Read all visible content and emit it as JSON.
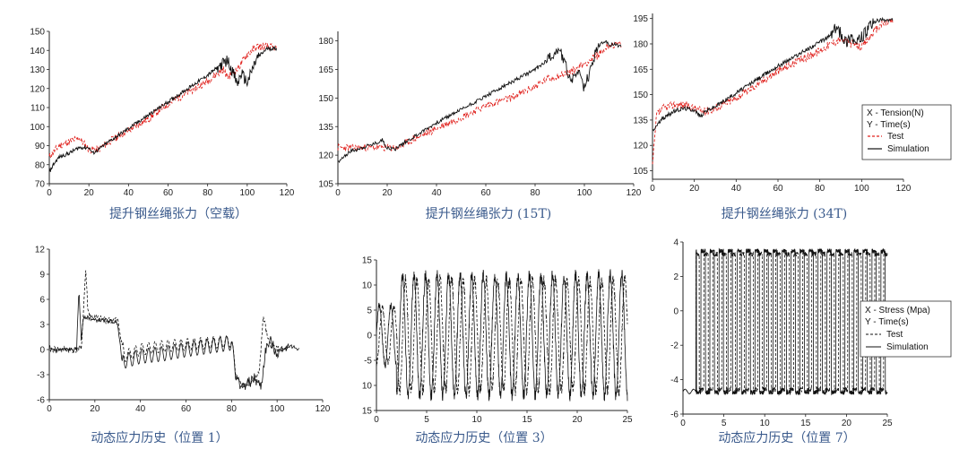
{
  "colors": {
    "test_top": "#e0201c",
    "simulation": "#111111",
    "caption": "#3a5a8c"
  },
  "legend_tension": {
    "x": "X - Tension(N)",
    "y": "Y - Time(s)",
    "test": "Test",
    "simulation": "Simulation"
  },
  "legend_stress": {
    "x": "X - Stress (Mpa)",
    "y": "Y - Time(s)",
    "test": "Test",
    "simulation": "Simulation"
  },
  "chart_data": [
    {
      "type": "line",
      "caption": "提升钢丝绳张力（空载）",
      "xlim": [
        0,
        120
      ],
      "ylim": [
        70,
        150
      ],
      "xticks": [
        "0",
        "20",
        "40",
        "60",
        "80",
        "100",
        "120"
      ],
      "yticks": [
        "70",
        "80",
        "90",
        "100",
        "110",
        "120",
        "130",
        "140",
        "150"
      ],
      "series": [
        {
          "style": "test",
          "x": [
            0,
            5,
            10,
            15,
            20,
            25,
            30,
            40,
            50,
            60,
            70,
            80,
            85,
            88,
            90,
            95,
            100,
            105,
            110,
            115
          ],
          "y": [
            84,
            90,
            92,
            94,
            88,
            88,
            92,
            98,
            104,
            112,
            118,
            124,
            128,
            130,
            126,
            130,
            138,
            142,
            142,
            141
          ]
        },
        {
          "style": "simulation",
          "x": [
            0,
            2,
            5,
            10,
            15,
            20,
            22,
            25,
            30,
            40,
            50,
            60,
            70,
            80,
            85,
            90,
            93,
            95,
            97,
            100,
            103,
            105,
            110,
            115
          ],
          "y": [
            76,
            80,
            84,
            86,
            89,
            89,
            86,
            88,
            92,
            99,
            106,
            113,
            120,
            127,
            131,
            135,
            128,
            122,
            128,
            123,
            131,
            136,
            141,
            141
          ]
        }
      ]
    },
    {
      "type": "line",
      "caption": "提升钢丝绳张力 (15T)",
      "xlim": [
        0,
        120
      ],
      "ylim": [
        105,
        185
      ],
      "xticks": [
        "0",
        "20",
        "40",
        "60",
        "80",
        "100",
        "120"
      ],
      "yticks": [
        "105",
        "120",
        "135",
        "150",
        "165",
        "180"
      ],
      "series": [
        {
          "style": "test",
          "x": [
            0,
            5,
            10,
            20,
            25,
            30,
            40,
            50,
            60,
            70,
            80,
            85,
            90,
            95,
            100,
            105,
            110,
            115
          ],
          "y": [
            124,
            124,
            124,
            124,
            124,
            128,
            134,
            140,
            146,
            150,
            156,
            160,
            162,
            164,
            168,
            172,
            178,
            178
          ]
        },
        {
          "style": "simulation",
          "x": [
            0,
            3,
            5,
            10,
            15,
            18,
            20,
            23,
            25,
            30,
            40,
            50,
            60,
            70,
            80,
            85,
            88,
            90,
            92,
            95,
            97,
            100,
            103,
            105,
            108,
            110,
            113,
            115
          ],
          "y": [
            116,
            120,
            122,
            124,
            126,
            128,
            124,
            123,
            125,
            129,
            137,
            144,
            151,
            158,
            165,
            170,
            174,
            176,
            168,
            158,
            165,
            155,
            167,
            176,
            180,
            178,
            178,
            177
          ]
        }
      ]
    },
    {
      "type": "line",
      "caption": "提升钢丝绳张力 (34T)",
      "xlim": [
        0,
        120
      ],
      "ylim": [
        100,
        198
      ],
      "xticks": [
        "0",
        "20",
        "40",
        "60",
        "80",
        "100",
        "120"
      ],
      "yticks": [
        "105",
        "120",
        "135",
        "150",
        "165",
        "180",
        "195"
      ],
      "series": [
        {
          "style": "test",
          "x": [
            0,
            2,
            5,
            10,
            15,
            20,
            25,
            30,
            40,
            50,
            60,
            70,
            80,
            85,
            90,
            95,
            100,
            105,
            110,
            115
          ],
          "y": [
            108,
            138,
            142,
            144,
            144,
            142,
            140,
            142,
            148,
            156,
            164,
            170,
            176,
            180,
            183,
            180,
            178,
            186,
            192,
            194
          ]
        },
        {
          "style": "simulation",
          "x": [
            0,
            2,
            5,
            10,
            15,
            20,
            23,
            25,
            30,
            40,
            50,
            60,
            70,
            80,
            85,
            88,
            90,
            93,
            95,
            97,
            100,
            103,
            105,
            108,
            110,
            115
          ],
          "y": [
            128,
            132,
            136,
            140,
            142,
            141,
            137,
            140,
            143,
            151,
            159,
            167,
            174,
            181,
            185,
            190,
            186,
            181,
            186,
            180,
            184,
            188,
            192,
            194,
            194,
            194
          ]
        }
      ]
    },
    {
      "type": "line",
      "caption": "动态应力历史（位置 1）",
      "xlim": [
        0,
        120
      ],
      "ylim": [
        -6,
        12
      ],
      "xticks": [
        "0",
        "20",
        "40",
        "60",
        "80",
        "100",
        "120"
      ],
      "yticks": [
        "-6",
        "-3",
        "0",
        "3",
        "6",
        "9",
        "12"
      ],
      "series": [
        {
          "style": "test",
          "x": [
            0,
            14,
            16,
            17,
            19,
            25,
            30,
            33,
            40,
            50,
            60,
            70,
            80,
            82,
            85,
            88,
            92,
            94,
            96,
            100,
            105
          ],
          "y": [
            0,
            0,
            9.5,
            4.5,
            3.8,
            3.5,
            3.5,
            -0.8,
            0,
            0.4,
            0.6,
            0.8,
            1,
            -3,
            -4.5,
            -4,
            -3,
            4,
            1,
            0,
            0
          ]
        },
        {
          "style": "simulation",
          "x": [
            0,
            12,
            13,
            14,
            15,
            20,
            25,
            30,
            32,
            35,
            40,
            50,
            60,
            70,
            80,
            82,
            85,
            90,
            93,
            95,
            97,
            100,
            105,
            110
          ],
          "y": [
            0,
            0,
            7.5,
            1,
            4,
            3.5,
            3.5,
            3.2,
            -1.5,
            -1.2,
            -0.8,
            -0.5,
            0,
            0.4,
            0.8,
            -3.5,
            -4.5,
            -3.5,
            -4.5,
            0,
            1,
            -0.5,
            0.5,
            0
          ]
        }
      ]
    },
    {
      "type": "line",
      "caption": "动态应力历史（位置 3）",
      "xlim": [
        0,
        25
      ],
      "ylim": [
        -15,
        15
      ],
      "xticks": [
        "0",
        "5",
        "10",
        "15",
        "20",
        "25"
      ],
      "yticks": [
        "15",
        "10",
        "5",
        "0",
        "-5",
        "10",
        "15"
      ],
      "series": [
        {
          "style": "test",
          "amplitude": 11,
          "period": 1.15,
          "phase": 0.3
        },
        {
          "style": "simulation",
          "amplitude": 12,
          "period": 1.15,
          "phase": 0
        }
      ]
    },
    {
      "type": "line",
      "caption": "动态应力历史（位置 7）",
      "xlim": [
        0,
        25
      ],
      "ylim": [
        -6,
        5.4
      ],
      "xticks": [
        "0",
        "5",
        "10",
        "15",
        "20",
        "25"
      ],
      "yticks": [
        "4",
        "2",
        "0",
        "-2",
        "-4",
        "-6"
      ],
      "series": [
        {
          "style": "test",
          "amplitude": 4.6,
          "period": 1.1,
          "phase": 0.35
        },
        {
          "style": "simulation",
          "amplitude": 4.8,
          "period": 1.1,
          "phase": 0
        }
      ]
    }
  ]
}
